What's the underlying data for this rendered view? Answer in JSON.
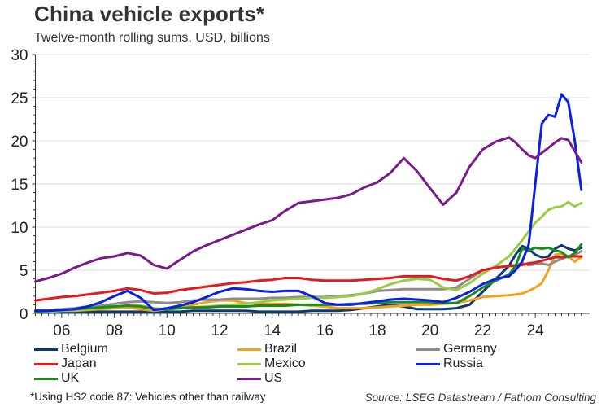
{
  "header": {
    "title": "China vehicle exports*",
    "subtitle": "Twelve-month rolling sums, USD, billions"
  },
  "footer": {
    "footnote": "*Using HS2 code 87: Vehicles other than railway",
    "source": "Source: LSEG Datastream / Fathom Consulting"
  },
  "chart_data": {
    "type": "line",
    "title": "China vehicle exports*",
    "subtitle": "Twelve-month rolling sums, USD, billions",
    "xlabel": "",
    "ylabel": "",
    "xlim": [
      2005,
      2026.2
    ],
    "ylim": [
      0,
      30
    ],
    "yticks": [
      0,
      5,
      10,
      15,
      20,
      25,
      30
    ],
    "ytick_labels": [
      "0",
      "5",
      "10",
      "15",
      "20",
      "25",
      "30"
    ],
    "xticks": [
      2006,
      2008,
      2010,
      2012,
      2014,
      2016,
      2018,
      2020,
      2022,
      2024
    ],
    "xtick_labels": [
      "06",
      "08",
      "10",
      "12",
      "14",
      "16",
      "18",
      "20",
      "22",
      "24"
    ],
    "grid": true,
    "legend_position": "bottom",
    "x": [
      2005.0,
      2005.5,
      2006.0,
      2006.5,
      2007.0,
      2007.5,
      2008.0,
      2008.5,
      2009.0,
      2009.5,
      2010.0,
      2010.5,
      2011.0,
      2011.5,
      2012.0,
      2012.5,
      2013.0,
      2013.5,
      2014.0,
      2014.5,
      2015.0,
      2015.5,
      2016.0,
      2016.5,
      2017.0,
      2017.5,
      2018.0,
      2018.5,
      2019.0,
      2019.5,
      2020.0,
      2020.5,
      2021.0,
      2021.5,
      2022.0,
      2022.5,
      2023.0,
      2023.25,
      2023.5,
      2023.75,
      2024.0,
      2024.25,
      2024.5,
      2024.75,
      2025.0,
      2025.25,
      2025.5,
      2025.75
    ],
    "series": [
      {
        "name": "Belgium",
        "color": "#0b3a6e",
        "values": [
          0.1,
          0.1,
          0.1,
          0.1,
          0.2,
          0.2,
          0.2,
          0.2,
          0.2,
          0.1,
          0.2,
          0.2,
          0.3,
          0.3,
          0.3,
          0.3,
          0.3,
          0.2,
          0.2,
          0.2,
          0.2,
          0.3,
          0.3,
          0.3,
          0.4,
          0.6,
          0.8,
          1.0,
          0.8,
          0.5,
          0.5,
          0.5,
          0.6,
          1.0,
          2.5,
          4.0,
          5.5,
          6.8,
          7.8,
          7.5,
          6.8,
          6.5,
          6.6,
          7.5,
          7.9,
          7.5,
          7.3,
          7.6
        ]
      },
      {
        "name": "Brazil",
        "color": "#f4a020",
        "values": [
          0.2,
          0.2,
          0.3,
          0.3,
          0.4,
          0.5,
          0.6,
          0.7,
          0.5,
          0.3,
          0.5,
          0.7,
          1.0,
          1.3,
          1.5,
          1.5,
          1.2,
          1.1,
          1.1,
          1.1,
          1.0,
          0.9,
          0.8,
          0.6,
          0.6,
          0.6,
          0.7,
          0.8,
          0.9,
          1.0,
          1.0,
          1.1,
          1.2,
          1.5,
          1.9,
          2.0,
          2.1,
          2.2,
          2.3,
          2.6,
          3.0,
          3.5,
          5.0,
          6.8,
          6.9,
          6.6,
          6.0,
          6.5
        ]
      },
      {
        "name": "Germany",
        "color": "#8c8c8c",
        "values": [
          0.3,
          0.4,
          0.5,
          0.6,
          0.8,
          0.9,
          1.1,
          1.3,
          1.4,
          1.3,
          1.2,
          1.3,
          1.5,
          1.6,
          1.6,
          1.7,
          1.7,
          1.7,
          1.8,
          1.8,
          1.9,
          1.9,
          1.9,
          2.0,
          2.1,
          2.3,
          2.6,
          2.7,
          2.8,
          2.8,
          2.8,
          2.8,
          3.0,
          4.0,
          5.0,
          5.3,
          5.5,
          5.6,
          5.8,
          5.6,
          5.7,
          5.8,
          5.6,
          6.0,
          6.3,
          6.6,
          6.8,
          7.2
        ]
      },
      {
        "name": "Japan",
        "color": "#e41a1c",
        "values": [
          1.5,
          1.7,
          1.9,
          2.0,
          2.2,
          2.4,
          2.6,
          2.9,
          2.7,
          2.3,
          2.4,
          2.7,
          2.9,
          3.1,
          3.3,
          3.5,
          3.6,
          3.8,
          3.9,
          4.1,
          4.1,
          3.9,
          3.8,
          3.8,
          3.8,
          3.9,
          4.0,
          4.1,
          4.3,
          4.3,
          4.3,
          4.0,
          3.8,
          4.3,
          5.0,
          5.3,
          5.5,
          5.5,
          5.6,
          5.8,
          5.9,
          6.1,
          6.3,
          6.5,
          6.5,
          6.6,
          6.6,
          6.6
        ]
      },
      {
        "name": "Mexico",
        "color": "#99cc44",
        "values": [
          0.1,
          0.2,
          0.3,
          0.4,
          0.5,
          0.6,
          0.7,
          0.9,
          0.9,
          0.6,
          0.5,
          0.6,
          0.7,
          0.8,
          0.9,
          1.0,
          1.1,
          1.3,
          1.5,
          1.6,
          1.7,
          1.8,
          1.8,
          1.9,
          2.0,
          2.3,
          2.8,
          3.4,
          3.8,
          4.0,
          3.9,
          3.0,
          2.7,
          3.5,
          4.6,
          5.5,
          6.6,
          7.5,
          8.5,
          9.5,
          10.5,
          11.2,
          12.0,
          12.3,
          12.4,
          12.9,
          12.4,
          12.8
        ]
      },
      {
        "name": "Russia",
        "color": "#0a1ee6",
        "values": [
          0.3,
          0.3,
          0.4,
          0.5,
          0.8,
          1.3,
          2.0,
          2.6,
          1.8,
          0.4,
          0.6,
          0.9,
          1.3,
          1.9,
          2.5,
          2.9,
          2.8,
          2.6,
          2.5,
          2.6,
          2.6,
          2.0,
          1.2,
          1.0,
          1.0,
          1.2,
          1.4,
          1.6,
          1.7,
          1.6,
          1.5,
          1.3,
          1.8,
          2.5,
          3.4,
          4.0,
          4.3,
          5.0,
          6.0,
          8.0,
          15.0,
          22.0,
          23.0,
          22.8,
          25.4,
          24.5,
          20.0,
          14.3
        ]
      },
      {
        "name": "UK",
        "color": "#1a8a22",
        "values": [
          0.2,
          0.3,
          0.4,
          0.5,
          0.6,
          0.7,
          0.8,
          0.9,
          0.8,
          0.5,
          0.5,
          0.6,
          0.7,
          0.7,
          0.8,
          0.8,
          0.8,
          0.9,
          0.9,
          0.9,
          1.0,
          1.0,
          1.0,
          1.0,
          1.1,
          1.1,
          1.2,
          1.3,
          1.3,
          1.3,
          1.3,
          1.2,
          1.2,
          2.0,
          3.0,
          3.8,
          4.5,
          5.5,
          7.5,
          7.3,
          7.6,
          7.5,
          7.6,
          7.3,
          7.1,
          6.5,
          7.0,
          8.0
        ]
      },
      {
        "name": "US",
        "color": "#7b1a8a",
        "values": [
          3.7,
          4.1,
          4.6,
          5.3,
          5.9,
          6.4,
          6.6,
          7.0,
          6.7,
          5.6,
          5.2,
          6.2,
          7.2,
          7.9,
          8.5,
          9.1,
          9.7,
          10.3,
          10.8,
          11.9,
          12.8,
          13.0,
          13.2,
          13.4,
          13.8,
          14.6,
          15.2,
          16.3,
          18.0,
          16.5,
          14.5,
          12.6,
          14.0,
          17.0,
          19.0,
          19.9,
          20.4,
          19.8,
          19.0,
          18.3,
          18.0,
          18.6,
          19.2,
          19.8,
          20.3,
          20.1,
          18.8,
          17.5
        ]
      }
    ]
  }
}
